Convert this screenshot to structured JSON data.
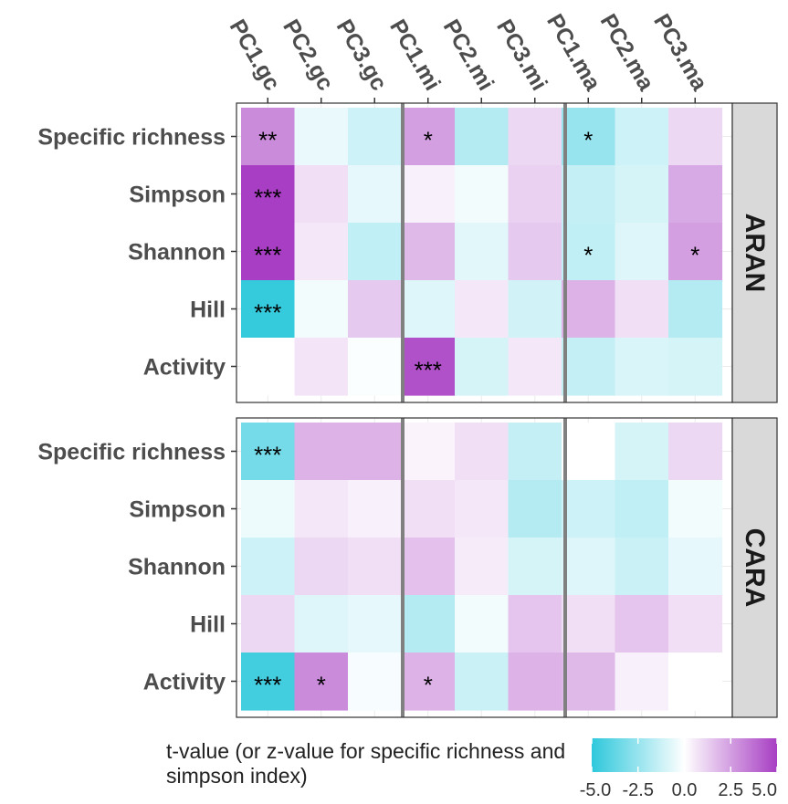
{
  "chart_data": {
    "type": "heatmap",
    "columns": [
      "PC1.gc",
      "PC2.gc",
      "PC3.gc",
      "PC1.mi",
      "PC2.mi",
      "PC3.mi",
      "PC1.ma",
      "PC2.ma",
      "PC3.ma"
    ],
    "rows": [
      "Specific richness",
      "Simpson",
      "Shannon",
      "Hill",
      "Activity"
    ],
    "panels": [
      {
        "name": "ARAN",
        "values": [
          [
            3.0,
            -0.5,
            -1.2,
            2.5,
            -1.8,
            1.0,
            -2.5,
            -1.2,
            1.0
          ],
          [
            5.0,
            0.8,
            -0.6,
            0.4,
            -0.3,
            1.2,
            -1.4,
            -1.0,
            2.2
          ],
          [
            5.0,
            0.6,
            -1.5,
            1.8,
            -0.7,
            1.4,
            -1.5,
            -0.8,
            2.5
          ],
          [
            -4.8,
            -0.3,
            1.4,
            -0.8,
            0.6,
            -1.1,
            2.0,
            0.8,
            -1.8
          ],
          [
            0.0,
            0.7,
            -0.1,
            4.5,
            -1.0,
            0.6,
            -1.4,
            -0.9,
            -1.0
          ]
        ],
        "significance": [
          [
            "**",
            "",
            "",
            "*",
            "",
            "",
            "*",
            "",
            ""
          ],
          [
            "***",
            "",
            "",
            "",
            "",
            "",
            "",
            "",
            ""
          ],
          [
            "***",
            "",
            "",
            "",
            "",
            "",
            "*",
            "",
            "*"
          ],
          [
            "***",
            "",
            "",
            "",
            "",
            "",
            "",
            "",
            ""
          ],
          [
            "",
            "",
            "",
            "***",
            "",
            "",
            "",
            "",
            ""
          ]
        ]
      },
      {
        "name": "CARA",
        "values": [
          [
            -3.3,
            2.0,
            2.0,
            0.3,
            0.8,
            -1.4,
            0.0,
            -1.0,
            1.0
          ],
          [
            -0.4,
            0.6,
            0.4,
            0.8,
            0.6,
            -1.8,
            -1.2,
            -1.5,
            -0.3
          ],
          [
            -1.2,
            1.0,
            0.8,
            1.6,
            0.5,
            -1.0,
            -0.8,
            -1.3,
            -0.6
          ],
          [
            1.0,
            -0.8,
            -0.6,
            -1.8,
            -0.3,
            1.5,
            0.8,
            1.5,
            0.8
          ],
          [
            -4.5,
            3.0,
            -0.2,
            2.0,
            -1.3,
            2.0,
            1.8,
            0.4,
            0.0
          ]
        ],
        "significance": [
          [
            "***",
            "",
            "",
            "",
            "",
            "",
            "",
            "",
            ""
          ],
          [
            "",
            "",
            "",
            "",
            "",
            "",
            "",
            "",
            ""
          ],
          [
            "",
            "",
            "",
            "",
            "",
            "",
            "",
            "",
            ""
          ],
          [
            "",
            "",
            "",
            "",
            "",
            "",
            "",
            "",
            ""
          ],
          [
            "***",
            "*",
            "",
            "*",
            "",
            "",
            "",
            "",
            ""
          ]
        ]
      }
    ],
    "color_scale": {
      "low": "#2ec8dc",
      "mid": "#ffffff",
      "high": "#a73ec3",
      "domain": [
        -5.0,
        5.0
      ],
      "ticks": [
        "-5.0",
        "-2.5",
        "0.0",
        "2.5",
        "5.0"
      ]
    },
    "legend_title": "t-value (or z-value for specific richness and simpson index)",
    "grid": true,
    "legend_position": "bottom"
  }
}
